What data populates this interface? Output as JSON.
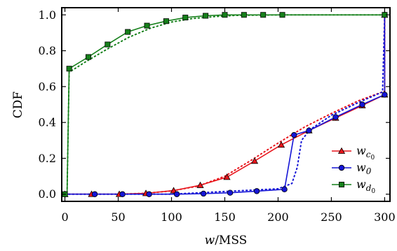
{
  "chart_data": {
    "type": "line",
    "title": "",
    "xlabel": "w/MSS",
    "ylabel": "CDF",
    "xlim": [
      -3,
      305
    ],
    "ylim": [
      -0.04,
      1.04
    ],
    "x_ticks": [
      0,
      50,
      100,
      150,
      200,
      250,
      300
    ],
    "y_ticks": [
      0.0,
      0.2,
      0.4,
      0.6,
      0.8,
      1.0
    ],
    "x_tick_labels": [
      "0",
      "50",
      "100",
      "150",
      "200",
      "250",
      "300"
    ],
    "y_tick_labels": [
      "0.0",
      "0.2",
      "0.4",
      "0.6",
      "0.8",
      "1.0"
    ],
    "grid": false,
    "legend_position": "bottom-right",
    "series": [
      {
        "name": "w_{c0}",
        "color": "#e8141b",
        "marker": "triangle",
        "x": [
          0,
          25,
          51,
          76,
          102,
          127,
          152,
          178,
          203,
          229,
          254,
          279,
          300,
          300
        ],
        "y": [
          0.0,
          0.0,
          0.0,
          0.005,
          0.02,
          0.05,
          0.095,
          0.185,
          0.275,
          0.355,
          0.425,
          0.495,
          0.555,
          1.0
        ],
        "fit_x": [
          0,
          50,
          75,
          100,
          125,
          150,
          175,
          200,
          225,
          250,
          275,
          300,
          300
        ],
        "fit_y": [
          0.0,
          0.0,
          0.005,
          0.018,
          0.045,
          0.1,
          0.19,
          0.285,
          0.375,
          0.45,
          0.52,
          0.575,
          1.0
        ]
      },
      {
        "name": "w_0",
        "color": "#1515d6",
        "marker": "circle",
        "x": [
          0,
          28,
          54,
          79,
          105,
          130,
          155,
          180,
          206,
          215,
          229,
          254,
          279,
          300,
          300
        ],
        "y": [
          0.0,
          0.0,
          0.0,
          0.0,
          0.0,
          0.003,
          0.008,
          0.017,
          0.027,
          0.33,
          0.355,
          0.43,
          0.5,
          0.555,
          1.0
        ],
        "fit_x": [
          0,
          100,
          200,
          213,
          218,
          222,
          230,
          250,
          275,
          298,
          300
        ],
        "fit_y": [
          0.0,
          0.0,
          0.03,
          0.06,
          0.15,
          0.3,
          0.36,
          0.44,
          0.51,
          0.57,
          1.0
        ]
      },
      {
        "name": "w_{d0}",
        "color": "#15801a",
        "marker": "square",
        "x": [
          0,
          2,
          4,
          22,
          40,
          59,
          77,
          95,
          113,
          132,
          150,
          168,
          186,
          204,
          300
        ],
        "y": [
          0.0,
          0.0,
          0.7,
          0.765,
          0.835,
          0.905,
          0.94,
          0.965,
          0.985,
          0.995,
          1.0,
          1.0,
          1.0,
          1.0,
          1.0
        ],
        "fit_x": [
          0,
          2,
          4,
          20,
          40,
          60,
          80,
          100,
          120,
          140,
          160,
          200,
          300
        ],
        "fit_y": [
          0.0,
          0.0,
          0.68,
          0.74,
          0.81,
          0.875,
          0.925,
          0.96,
          0.98,
          0.99,
          0.997,
          1.0,
          1.0
        ]
      }
    ]
  },
  "legend": {
    "entries": [
      {
        "base": "w",
        "sub": "c",
        "subsub": "0"
      },
      {
        "base": "w",
        "sub": "0",
        "subsub": ""
      },
      {
        "base": "w",
        "sub": "d",
        "subsub": "0"
      }
    ]
  }
}
